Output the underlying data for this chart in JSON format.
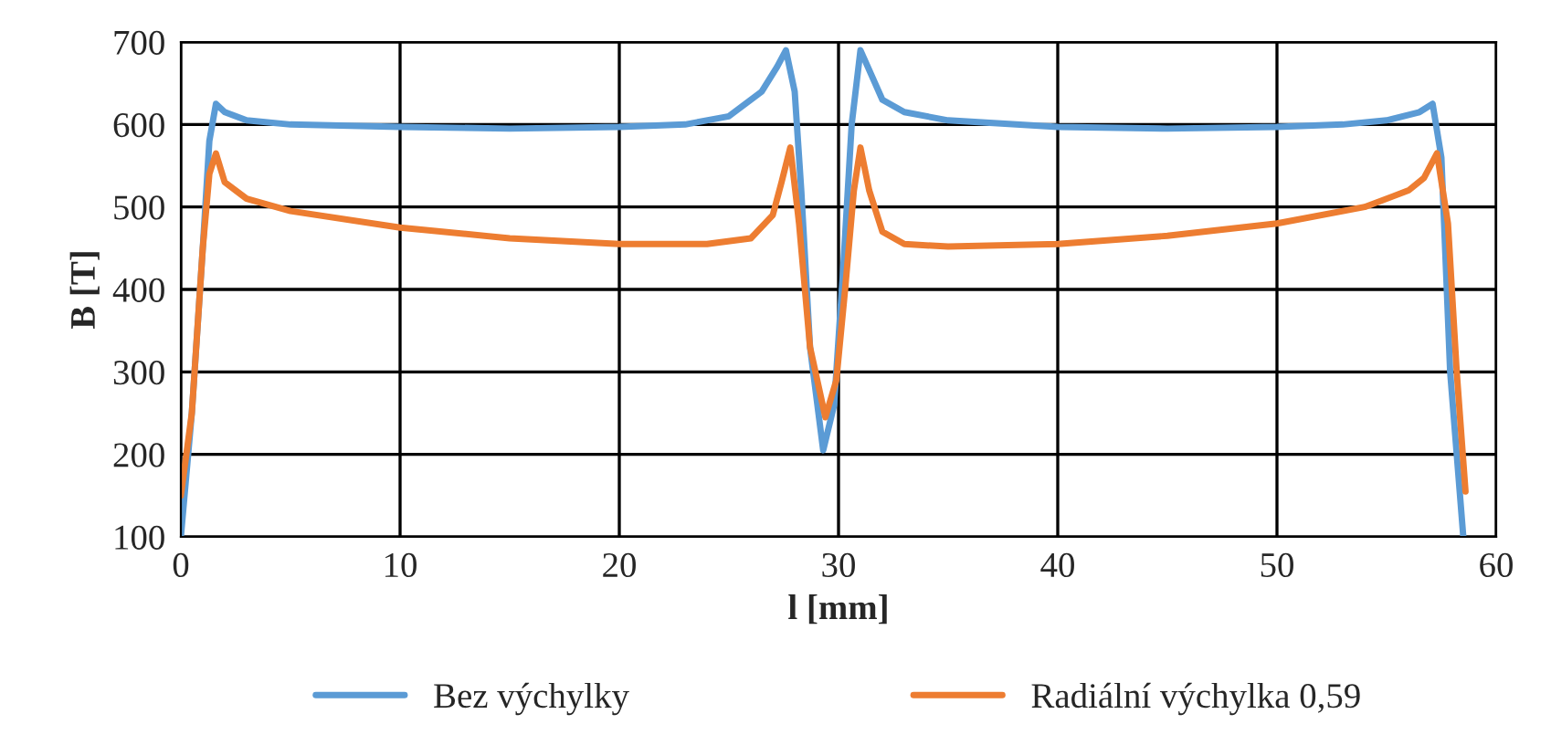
{
  "chart_data": {
    "type": "line",
    "xlabel": "l [mm]",
    "ylabel": "B [T]",
    "xlim": [
      0,
      60
    ],
    "xticks": [
      0,
      10,
      20,
      30,
      40,
      50,
      60
    ],
    "ylim": [
      100,
      700
    ],
    "yticks": [
      100,
      200,
      300,
      400,
      500,
      600,
      700
    ],
    "grid": true,
    "legend": "bottom",
    "marker": "none",
    "line_style": "solid",
    "series": [
      {
        "name": "Bez výchylky",
        "color": "#5b9bd5",
        "x": [
          0,
          0.5,
          1,
          1.3,
          1.6,
          2,
          3,
          5,
          10,
          15,
          20,
          23,
          25,
          26.5,
          27.2,
          27.6,
          28,
          28.3,
          28.7,
          29.3,
          29.8,
          30.2,
          30.6,
          31,
          31.5,
          32,
          33,
          35,
          40,
          45,
          50,
          53,
          55,
          56.5,
          57.1,
          57.5,
          57.9,
          58.5
        ],
        "values": [
          100,
          250,
          450,
          580,
          625,
          615,
          605,
          600,
          597,
          595,
          597,
          600,
          610,
          640,
          670,
          690,
          640,
          520,
          330,
          205,
          260,
          420,
          600,
          690,
          660,
          630,
          615,
          605,
          597,
          595,
          597,
          600,
          605,
          615,
          625,
          560,
          300,
          100
        ]
      },
      {
        "name": "Radiální výchylka 0,59",
        "color": "#ed7d31",
        "x": [
          0,
          0.5,
          1,
          1.3,
          1.6,
          2,
          3,
          5,
          10,
          15,
          20,
          24,
          26,
          27,
          27.4,
          27.8,
          28.2,
          28.7,
          29.4,
          29.9,
          30.3,
          30.7,
          31,
          31.4,
          32,
          33,
          35,
          40,
          45,
          50,
          54,
          56,
          56.7,
          57.3,
          57.8,
          58.2,
          58.6
        ],
        "values": [
          150,
          250,
          450,
          540,
          565,
          530,
          510,
          495,
          475,
          462,
          455,
          455,
          462,
          490,
          530,
          572,
          480,
          330,
          245,
          290,
          400,
          520,
          572,
          520,
          470,
          455,
          452,
          455,
          465,
          480,
          500,
          520,
          535,
          565,
          480,
          300,
          155
        ]
      }
    ]
  }
}
